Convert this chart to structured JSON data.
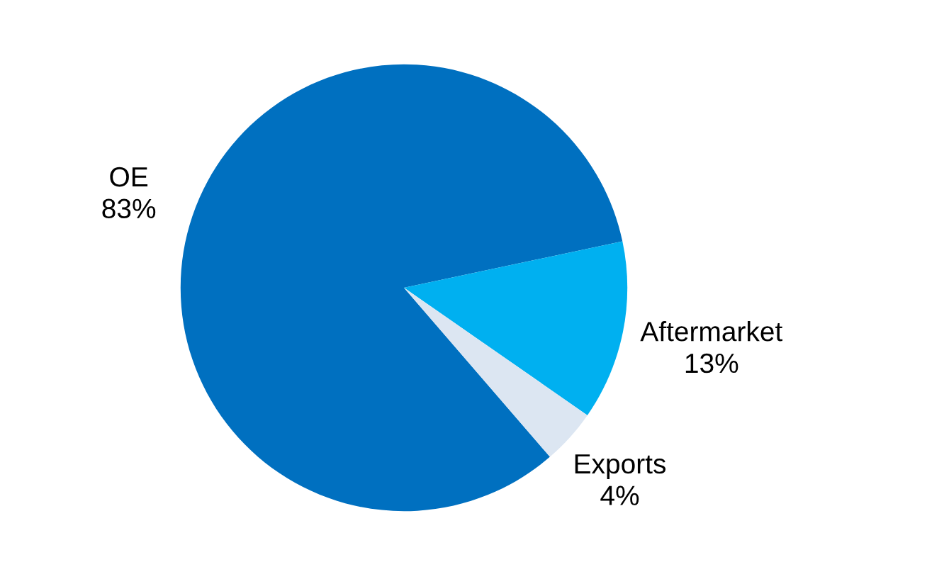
{
  "chart_data": {
    "type": "pie",
    "categories": [
      "OE",
      "Aftermarket",
      "Exports"
    ],
    "values": [
      83,
      13,
      4
    ],
    "colors": [
      "#0070c0",
      "#00b0f0",
      "#dce6f2"
    ],
    "value_labels": [
      "83%",
      "13%",
      "4%"
    ],
    "legend": false
  }
}
